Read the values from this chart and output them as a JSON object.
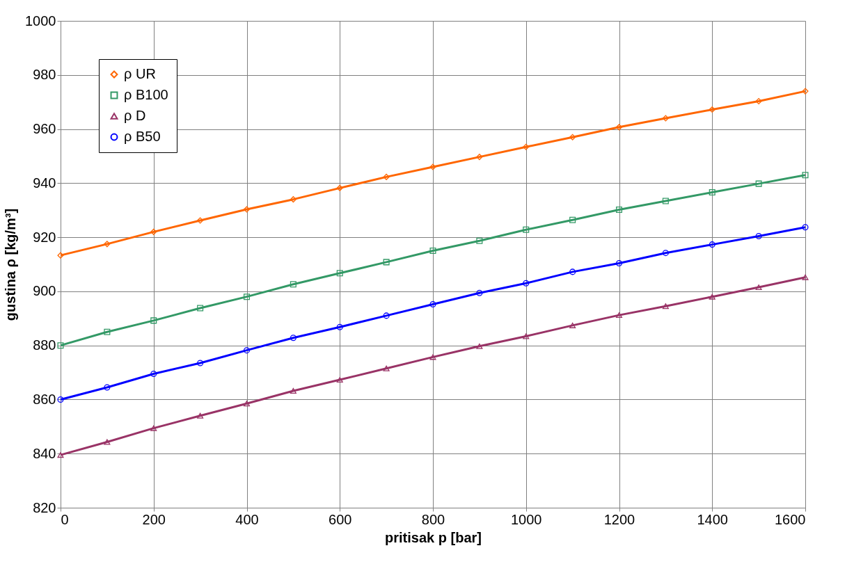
{
  "chart_data": {
    "type": "line",
    "xlabel": "pritisak p [bar]",
    "ylabel": "gustina ρ [kg/m³]",
    "x": [
      0,
      100,
      200,
      300,
      400,
      500,
      600,
      700,
      800,
      900,
      1000,
      1100,
      1200,
      1300,
      1400,
      1500,
      1600
    ],
    "xlim": [
      0,
      1600
    ],
    "xticks": [
      0,
      200,
      400,
      600,
      800,
      1000,
      1200,
      1400,
      1600
    ],
    "ylim": [
      820,
      1000
    ],
    "yticks": [
      820,
      840,
      860,
      880,
      900,
      920,
      940,
      960,
      980,
      1000
    ],
    "grid": true,
    "legend": "top left",
    "line_style": "solid",
    "series": [
      {
        "name": "ρ UR",
        "color": "#ff6600",
        "marker": "diamond",
        "values": [
          913.3,
          917.5,
          922,
          926.2,
          930.3,
          934,
          938.2,
          942.3,
          946,
          949.7,
          953.4,
          957,
          960.7,
          964,
          967.2,
          970.3,
          974
        ]
      },
      {
        "name": "ρ B100",
        "color": "#339966",
        "marker": "square",
        "values": [
          880,
          885,
          889.2,
          893.8,
          898,
          902.6,
          906.7,
          910.8,
          915,
          918.7,
          922.8,
          926.4,
          930.2,
          933.4,
          936.6,
          939.8,
          943
        ]
      },
      {
        "name": "ρ D",
        "color": "#993366",
        "marker": "triangle",
        "values": [
          839.5,
          844.3,
          849.4,
          854,
          858.5,
          863.2,
          867.3,
          871.5,
          875.7,
          879.7,
          883.4,
          887.4,
          891.2,
          894.5,
          898,
          901.5,
          905.2
        ]
      },
      {
        "name": "ρ B50",
        "color": "#0000ff",
        "marker": "circle",
        "values": [
          860,
          864.5,
          869.5,
          873.5,
          878.2,
          882.8,
          886.8,
          891,
          895.2,
          899.4,
          903,
          907.2,
          910.4,
          914.2,
          917.3,
          920.4,
          923.7
        ]
      }
    ]
  }
}
